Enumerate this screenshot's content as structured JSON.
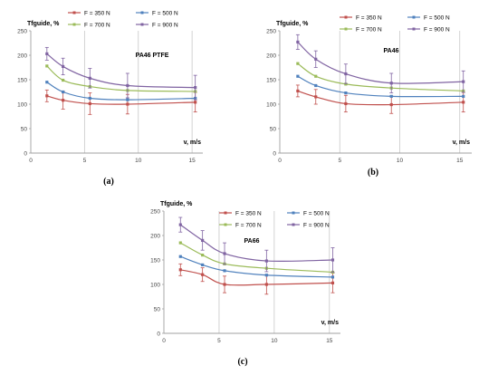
{
  "chart_data": [
    {
      "type": "line",
      "caption": "(a)",
      "annotation": "PA46 PTFE",
      "ylabel": "Tfguide, %",
      "xlabel": "v, m/s",
      "xlim": [
        0,
        16
      ],
      "ylim": [
        0,
        250
      ],
      "xticks": [
        0,
        5,
        10,
        15
      ],
      "yticks": [
        0,
        50,
        100,
        150,
        200,
        250
      ],
      "grid": "vertical",
      "legend_position": "top",
      "series": [
        {
          "name": "F = 350 N",
          "color": "#c0504d",
          "points": [
            [
              1.5,
              117
            ],
            [
              3,
              108
            ],
            [
              5.5,
              101
            ],
            [
              9,
              100
            ],
            [
              15.3,
              104
            ]
          ],
          "error": [
            12,
            18,
            22,
            20,
            20
          ]
        },
        {
          "name": "F = 500 N",
          "color": "#4f81bd",
          "points": [
            [
              1.5,
              145
            ],
            [
              3,
              125
            ],
            [
              5.5,
              112
            ],
            [
              9,
              109
            ],
            [
              15.3,
              112
            ]
          ],
          "error": [
            0,
            0,
            0,
            0,
            0
          ]
        },
        {
          "name": "F = 700 N",
          "color": "#9bbb59",
          "points": [
            [
              1.5,
              178
            ],
            [
              3,
              149
            ],
            [
              5.5,
              136
            ],
            [
              9,
              128
            ],
            [
              15.3,
              126
            ]
          ],
          "error": [
            0,
            0,
            0,
            0,
            0
          ]
        },
        {
          "name": "F = 900 N",
          "color": "#8064a2",
          "points": [
            [
              1.5,
              203
            ],
            [
              3,
              177
            ],
            [
              5.5,
              153
            ],
            [
              9,
              138
            ],
            [
              15.3,
              134
            ]
          ],
          "error": [
            13,
            17,
            20,
            25,
            25
          ]
        }
      ]
    },
    {
      "type": "line",
      "caption": "(b)",
      "annotation": "PA46",
      "ylabel": "Tfguide, %",
      "xlabel": "v, m/s",
      "xlim": [
        0,
        16
      ],
      "ylim": [
        0,
        250
      ],
      "xticks": [
        0,
        5,
        10,
        15
      ],
      "yticks": [
        0,
        50,
        100,
        150,
        200,
        250
      ],
      "grid": "vertical",
      "legend_position": "top",
      "series": [
        {
          "name": "F = 350 N",
          "color": "#c0504d",
          "points": [
            [
              1.5,
              127
            ],
            [
              3,
              115
            ],
            [
              5.5,
              101
            ],
            [
              9.3,
              99
            ],
            [
              15.3,
              104
            ]
          ],
          "error": [
            12,
            15,
            17,
            18,
            20
          ]
        },
        {
          "name": "F = 500 N",
          "color": "#4f81bd",
          "points": [
            [
              1.5,
              157
            ],
            [
              3,
              138
            ],
            [
              5.5,
              123
            ],
            [
              9.3,
              116
            ],
            [
              15.3,
              116
            ]
          ],
          "error": [
            0,
            0,
            0,
            0,
            0
          ]
        },
        {
          "name": "F = 700 N",
          "color": "#9bbb59",
          "points": [
            [
              1.5,
              183
            ],
            [
              3,
              157
            ],
            [
              5.5,
              141
            ],
            [
              9.3,
              133
            ],
            [
              15.3,
              127
            ]
          ],
          "error": [
            0,
            0,
            0,
            0,
            0
          ]
        },
        {
          "name": "F = 900 N",
          "color": "#8064a2",
          "points": [
            [
              1.5,
              227
            ],
            [
              3,
              192
            ],
            [
              5.5,
              162
            ],
            [
              9.3,
              143
            ],
            [
              15.3,
              146
            ]
          ],
          "error": [
            15,
            17,
            20,
            20,
            22
          ]
        }
      ]
    },
    {
      "type": "line",
      "caption": "(c)",
      "annotation": "PA66",
      "ylabel": "Tfguide, %",
      "xlabel": "v, m/s",
      "xlim": [
        0,
        16
      ],
      "ylim": [
        0,
        250
      ],
      "xticks": [
        0,
        5,
        10,
        15
      ],
      "yticks": [
        0,
        50,
        100,
        150,
        200,
        250
      ],
      "grid": "vertical",
      "legend_position": "top",
      "series": [
        {
          "name": "F = 350 N",
          "color": "#c0504d",
          "points": [
            [
              1.5,
              130
            ],
            [
              3.5,
              120
            ],
            [
              5.5,
              100
            ],
            [
              9.3,
              100
            ],
            [
              15.3,
              103
            ]
          ],
          "error": [
            12,
            14,
            17,
            20,
            20
          ]
        },
        {
          "name": "F = 500 N",
          "color": "#4f81bd",
          "points": [
            [
              1.5,
              157
            ],
            [
              3.5,
              140
            ],
            [
              5.5,
              128
            ],
            [
              9.3,
              119
            ],
            [
              15.3,
              115
            ]
          ],
          "error": [
            0,
            0,
            0,
            0,
            0
          ]
        },
        {
          "name": "F = 700 N",
          "color": "#9bbb59",
          "points": [
            [
              1.5,
              185
            ],
            [
              3.5,
              160
            ],
            [
              5.5,
              142
            ],
            [
              9.3,
              133
            ],
            [
              15.3,
              125
            ]
          ],
          "error": [
            0,
            0,
            0,
            0,
            0
          ]
        },
        {
          "name": "F = 900 N",
          "color": "#8064a2",
          "points": [
            [
              1.5,
              222
            ],
            [
              3.5,
              190
            ],
            [
              5.5,
              163
            ],
            [
              9.3,
              148
            ],
            [
              15.3,
              150
            ]
          ],
          "error": [
            15,
            20,
            22,
            22,
            25
          ]
        }
      ]
    }
  ]
}
